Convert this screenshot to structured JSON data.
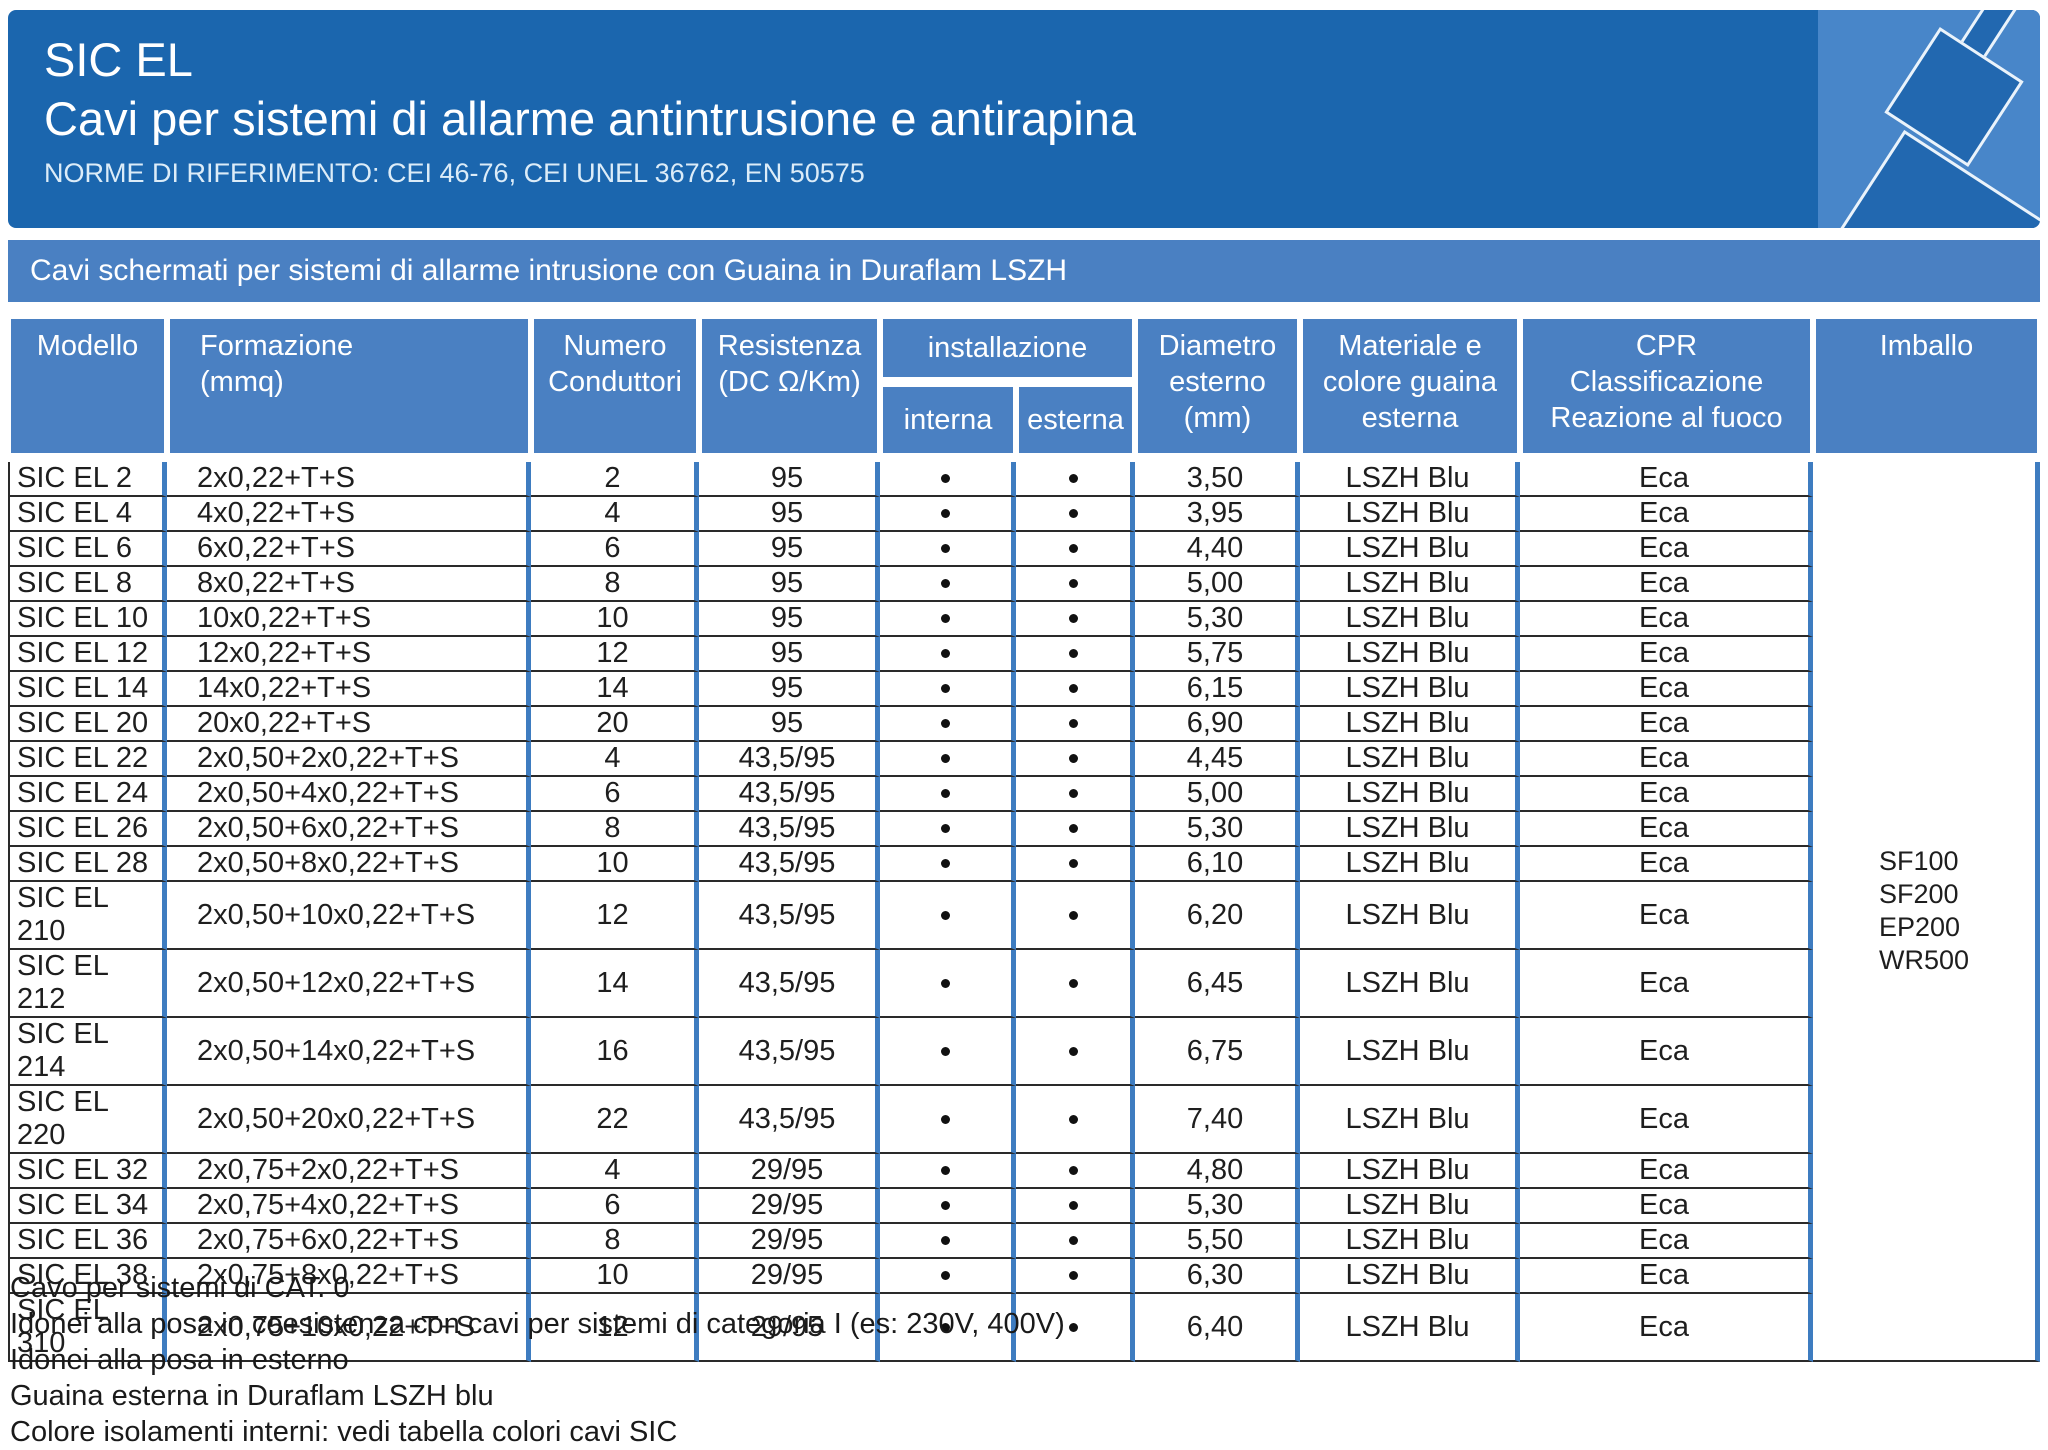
{
  "header": {
    "title": "SIC EL",
    "subtitle": "Cavi per sistemi di allarme antintrusione e antirapina",
    "norms": "NORME DI RIFERIMENTO: CEI 46-76, CEI UNEL 36762, EN 50575"
  },
  "band": {
    "text": "Cavi schermati per sistemi di allarme intrusione con Guaina in Duraflam LSZH"
  },
  "colors": {
    "header_blue": "#1b66ae",
    "band_blue": "#4a80c2",
    "table_border_blue": "#3e7cc0",
    "row_line_dark": "#2a2a2a",
    "cable_icon_light_blue": "#4886c9",
    "cable_icon_dark_blue": "#2268b0"
  },
  "table": {
    "columns": {
      "modello": "Modello",
      "formazione_1": "Formazione",
      "formazione_2": "(mmq)",
      "numero_1": "Numero",
      "numero_2": "Conduttori",
      "resistenza_1": "Resistenza",
      "resistenza_2": "(DC Ω/Km)",
      "installazione": "installazione",
      "interna": "interna",
      "esterna": "esterna",
      "diametro_1": "Diametro",
      "diametro_2": "esterno",
      "diametro_3": "(mm)",
      "materiale_1": "Materiale e",
      "materiale_2": "colore guaina",
      "materiale_3": "esterna",
      "cpr_1": "CPR",
      "cpr_2": "Classificazione",
      "cpr_3": "Reazione al fuoco",
      "imballo": "Imballo"
    },
    "rows": [
      {
        "model": "SIC EL 2",
        "formation": "2x0,22+T+S",
        "conductors": "2",
        "resistance": "95",
        "interna": true,
        "esterna": true,
        "diameter": "3,50",
        "sheath": "LSZH Blu",
        "cpr": "Eca"
      },
      {
        "model": "SIC EL 4",
        "formation": "4x0,22+T+S",
        "conductors": "4",
        "resistance": "95",
        "interna": true,
        "esterna": true,
        "diameter": "3,95",
        "sheath": "LSZH Blu",
        "cpr": "Eca"
      },
      {
        "model": "SIC EL 6",
        "formation": "6x0,22+T+S",
        "conductors": "6",
        "resistance": "95",
        "interna": true,
        "esterna": true,
        "diameter": "4,40",
        "sheath": "LSZH Blu",
        "cpr": "Eca"
      },
      {
        "model": "SIC EL 8",
        "formation": "8x0,22+T+S",
        "conductors": "8",
        "resistance": "95",
        "interna": true,
        "esterna": true,
        "diameter": "5,00",
        "sheath": "LSZH Blu",
        "cpr": "Eca"
      },
      {
        "model": "SIC EL 10",
        "formation": "10x0,22+T+S",
        "conductors": "10",
        "resistance": "95",
        "interna": true,
        "esterna": true,
        "diameter": "5,30",
        "sheath": "LSZH Blu",
        "cpr": "Eca"
      },
      {
        "model": "SIC EL 12",
        "formation": "12x0,22+T+S",
        "conductors": "12",
        "resistance": "95",
        "interna": true,
        "esterna": true,
        "diameter": "5,75",
        "sheath": "LSZH Blu",
        "cpr": "Eca"
      },
      {
        "model": "SIC EL 14",
        "formation": "14x0,22+T+S",
        "conductors": "14",
        "resistance": "95",
        "interna": true,
        "esterna": true,
        "diameter": "6,15",
        "sheath": "LSZH Blu",
        "cpr": "Eca"
      },
      {
        "model": "SIC EL 20",
        "formation": "20x0,22+T+S",
        "conductors": "20",
        "resistance": "95",
        "interna": true,
        "esterna": true,
        "diameter": "6,90",
        "sheath": "LSZH Blu",
        "cpr": "Eca"
      },
      {
        "model": "SIC EL 22",
        "formation": "2x0,50+2x0,22+T+S",
        "conductors": "4",
        "resistance": "43,5/95",
        "interna": true,
        "esterna": true,
        "diameter": "4,45",
        "sheath": "LSZH Blu",
        "cpr": "Eca"
      },
      {
        "model": "SIC EL 24",
        "formation": "2x0,50+4x0,22+T+S",
        "conductors": "6",
        "resistance": "43,5/95",
        "interna": true,
        "esterna": true,
        "diameter": "5,00",
        "sheath": "LSZH Blu",
        "cpr": "Eca"
      },
      {
        "model": "SIC EL 26",
        "formation": "2x0,50+6x0,22+T+S",
        "conductors": "8",
        "resistance": "43,5/95",
        "interna": true,
        "esterna": true,
        "diameter": "5,30",
        "sheath": "LSZH Blu",
        "cpr": "Eca"
      },
      {
        "model": "SIC EL 28",
        "formation": "2x0,50+8x0,22+T+S",
        "conductors": "10",
        "resistance": "43,5/95",
        "interna": true,
        "esterna": true,
        "diameter": "6,10",
        "sheath": "LSZH Blu",
        "cpr": "Eca"
      },
      {
        "model": "SIC EL 210",
        "formation": "2x0,50+10x0,22+T+S",
        "conductors": "12",
        "resistance": "43,5/95",
        "interna": true,
        "esterna": true,
        "diameter": "6,20",
        "sheath": "LSZH Blu",
        "cpr": "Eca"
      },
      {
        "model": "SIC EL 212",
        "formation": "2x0,50+12x0,22+T+S",
        "conductors": "14",
        "resistance": "43,5/95",
        "interna": true,
        "esterna": true,
        "diameter": "6,45",
        "sheath": "LSZH Blu",
        "cpr": "Eca"
      },
      {
        "model": "SIC EL 214",
        "formation": "2x0,50+14x0,22+T+S",
        "conductors": "16",
        "resistance": "43,5/95",
        "interna": true,
        "esterna": true,
        "diameter": "6,75",
        "sheath": "LSZH Blu",
        "cpr": "Eca"
      },
      {
        "model": "SIC EL 220",
        "formation": "2x0,50+20x0,22+T+S",
        "conductors": "22",
        "resistance": "43,5/95",
        "interna": true,
        "esterna": true,
        "diameter": "7,40",
        "sheath": "LSZH Blu",
        "cpr": "Eca"
      },
      {
        "model": "SIC EL 32",
        "formation": "2x0,75+2x0,22+T+S",
        "conductors": "4",
        "resistance": "29/95",
        "interna": true,
        "esterna": true,
        "diameter": "4,80",
        "sheath": "LSZH Blu",
        "cpr": "Eca"
      },
      {
        "model": "SIC EL 34",
        "formation": "2x0,75+4x0,22+T+S",
        "conductors": "6",
        "resistance": "29/95",
        "interna": true,
        "esterna": true,
        "diameter": "5,30",
        "sheath": "LSZH Blu",
        "cpr": "Eca"
      },
      {
        "model": "SIC EL 36",
        "formation": "2x0,75+6x0,22+T+S",
        "conductors": "8",
        "resistance": "29/95",
        "interna": true,
        "esterna": true,
        "diameter": "5,50",
        "sheath": "LSZH Blu",
        "cpr": "Eca"
      },
      {
        "model": "SIC EL 38",
        "formation": "2x0,75+8x0,22+T+S",
        "conductors": "10",
        "resistance": "29/95",
        "interna": true,
        "esterna": true,
        "diameter": "6,30",
        "sheath": "LSZH Blu",
        "cpr": "Eca"
      },
      {
        "model": "SIC EL 310",
        "formation": "2x0,75+10x0,22+T+S",
        "conductors": "12",
        "resistance": "29/95",
        "interna": true,
        "esterna": true,
        "diameter": "6,40",
        "sheath": "LSZH Blu",
        "cpr": "Eca"
      }
    ],
    "imballo_values": [
      "SF100",
      "SF200",
      "EP200",
      "WR500"
    ]
  },
  "footer": {
    "lines": [
      "Cavo per sistemi di CAT. 0",
      "Idonei alla posa in coesistenza con cavi per sistemi di categoria I (es: 230V, 400V)",
      "Idonei alla posa in esterno",
      "Guaina esterna in Duraflam LSZH blu",
      "Colore isolamenti interni: vedi tabella colori cavi SIC"
    ]
  }
}
